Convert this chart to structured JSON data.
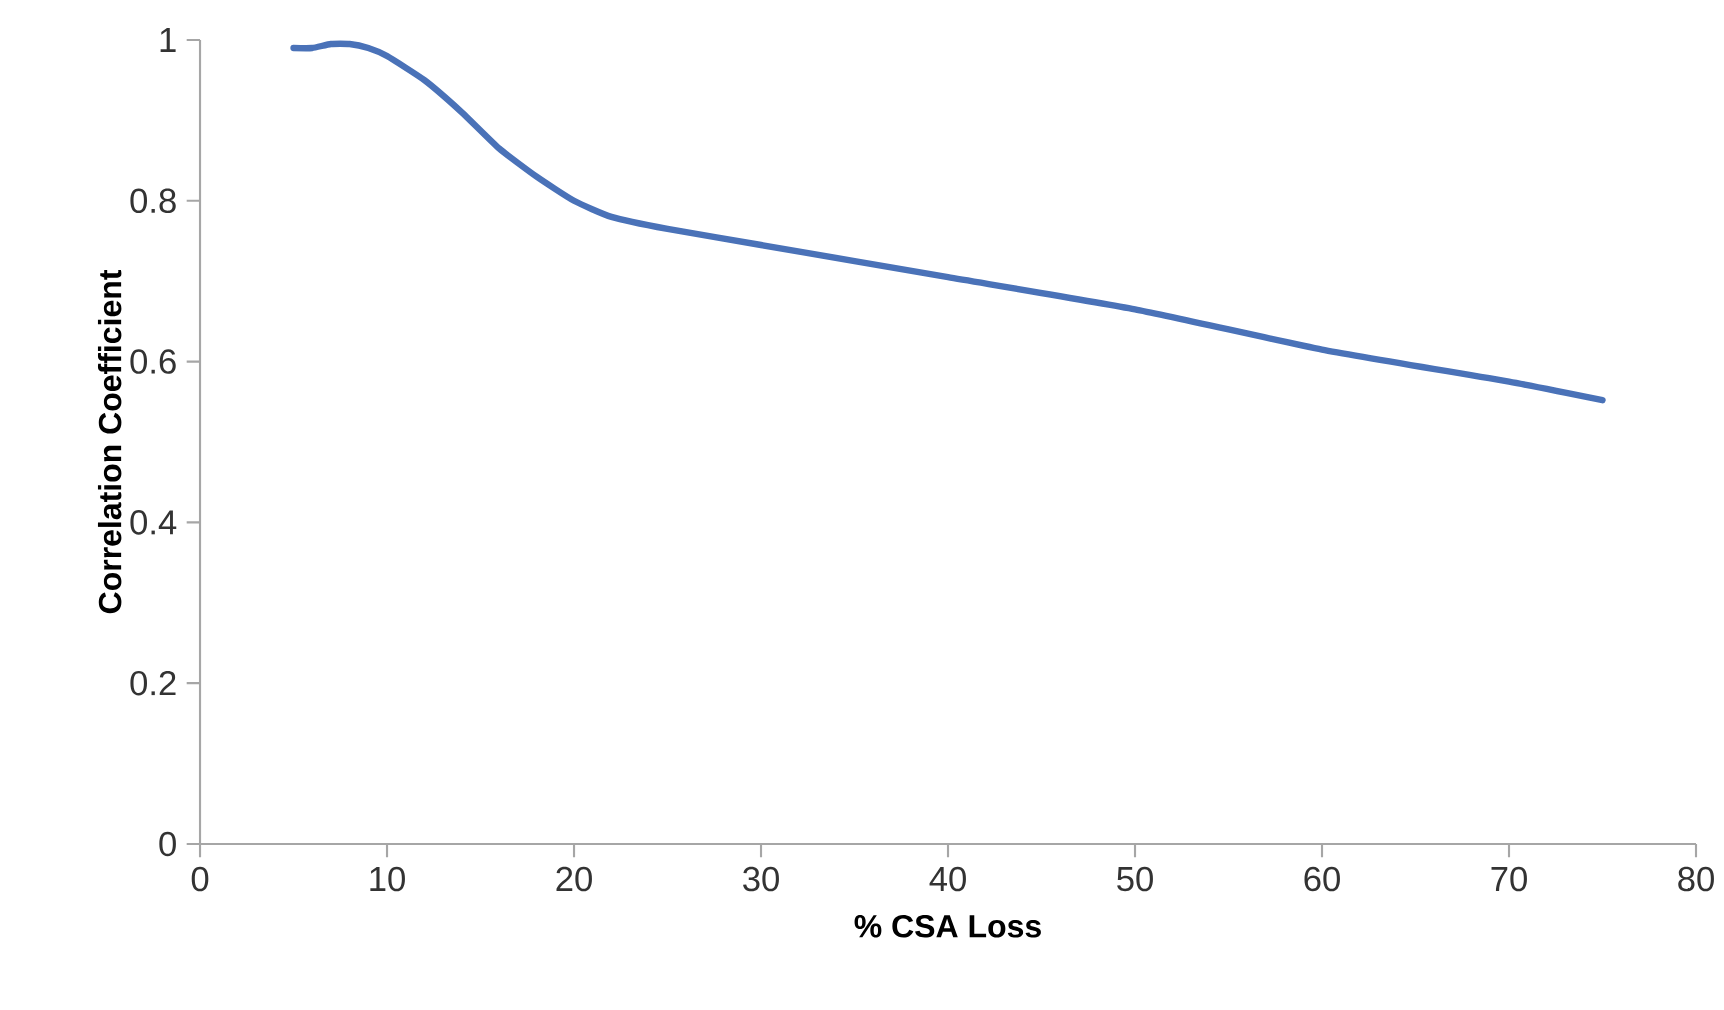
{
  "chart_data": {
    "type": "line",
    "xlabel": "% CSA Loss",
    "ylabel": "Correlation Coefficient",
    "xlim": [
      0,
      80
    ],
    "xticks": [
      0,
      10,
      20,
      30,
      40,
      50,
      60,
      70,
      80
    ],
    "ylim": [
      0,
      1
    ],
    "yticks": [
      0,
      0.2,
      0.4,
      0.6,
      0.8,
      1
    ],
    "grid": false,
    "legend": false,
    "marker": "none",
    "line_style": "solid",
    "series": [
      {
        "color": "#4a72b8",
        "x": [
          5,
          6,
          7,
          8,
          9,
          10,
          12,
          14,
          16,
          18,
          20,
          22,
          25,
          30,
          40,
          50,
          60,
          70,
          75
        ],
        "values": [
          0.99,
          0.99,
          0.995,
          0.995,
          0.99,
          0.98,
          0.95,
          0.91,
          0.865,
          0.83,
          0.8,
          0.78,
          0.765,
          0.745,
          0.705,
          0.665,
          0.615,
          0.575,
          0.552
        ]
      }
    ]
  }
}
